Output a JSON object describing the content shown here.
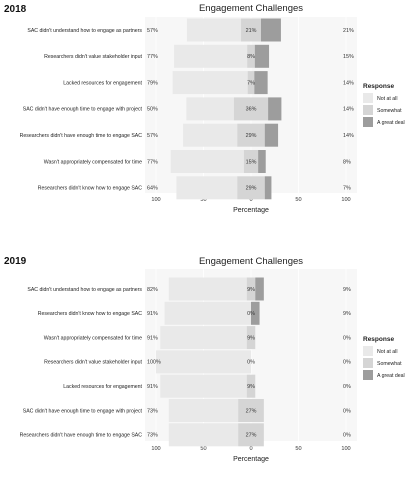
{
  "colors": {
    "not_at_all": "#e9e9e9",
    "somewhat": "#d5d5d5",
    "great_deal": "#9d9d9d",
    "panel": "#f7f7f7",
    "grid": "#ffffff"
  },
  "chart_data": [
    {
      "type": "bar",
      "year_label": "2018",
      "title": "Engagement Challenges",
      "xlabel": "Percentage",
      "xlim": [
        -100,
        100
      ],
      "ticks": [
        "100",
        "50",
        "0",
        "50",
        "100"
      ],
      "legend": {
        "title": "Response",
        "placement": "right",
        "entries": [
          "Not at all",
          "Somewhat",
          "A great deal"
        ]
      },
      "categories": [
        "SAC didn't understand how to engage as partners",
        "Researchers didn't value stakeholder input",
        "Lacked resources for engagement",
        "SAC didn't have enough time to engage with project",
        "Researchers didn't have enough time to engage SAC",
        "Wasn't appropriately compensated for time",
        "Researchers didn't know how to engage SAC"
      ],
      "left_pct": [
        "57%",
        "77%",
        "79%",
        "50%",
        "57%",
        "77%",
        "64%"
      ],
      "mid_pct": [
        "21%",
        "8%",
        "7%",
        "36%",
        "29%",
        "15%",
        "29%"
      ],
      "right_pct": [
        "21%",
        "15%",
        "14%",
        "14%",
        "14%",
        "8%",
        "7%"
      ],
      "series": [
        {
          "name": "Not at all",
          "values": [
            57,
            77,
            79,
            50,
            57,
            77,
            64
          ]
        },
        {
          "name": "Somewhat",
          "values": [
            21,
            8,
            7,
            36,
            29,
            15,
            29
          ]
        },
        {
          "name": "A great deal",
          "values": [
            21,
            15,
            14,
            14,
            14,
            8,
            7
          ]
        }
      ]
    },
    {
      "type": "bar",
      "year_label": "2019",
      "title": "Engagement Challenges",
      "xlabel": "Percentage",
      "xlim": [
        -100,
        100
      ],
      "ticks": [
        "100",
        "50",
        "0",
        "50",
        "100"
      ],
      "legend": {
        "title": "Response",
        "placement": "right",
        "entries": [
          "Not at all",
          "Somewhat",
          "A great deal"
        ]
      },
      "categories": [
        "SAC didn't understand how to engage as partners",
        "Researchers didn't know how to engage SAC",
        "Wasn't appropriately compensated for time",
        "Researchers didn't value stakeholder input",
        "Lacked resources for engagement",
        "SAC didn't have enough time to engage with project",
        "Researchers didn't have enough time to engage SAC"
      ],
      "left_pct": [
        "82%",
        "91%",
        "91%",
        "100%",
        "91%",
        "73%",
        "73%"
      ],
      "mid_pct": [
        "9%",
        "0%",
        "9%",
        "0%",
        "9%",
        "27%",
        "27%"
      ],
      "right_pct": [
        "9%",
        "9%",
        "0%",
        "0%",
        "0%",
        "0%",
        "0%"
      ],
      "series": [
        {
          "name": "Not at all",
          "values": [
            82,
            91,
            91,
            100,
            91,
            73,
            73
          ]
        },
        {
          "name": "Somewhat",
          "values": [
            9,
            0,
            9,
            0,
            9,
            27,
            27
          ]
        },
        {
          "name": "A great deal",
          "values": [
            9,
            9,
            0,
            0,
            0,
            0,
            0
          ]
        }
      ]
    }
  ]
}
